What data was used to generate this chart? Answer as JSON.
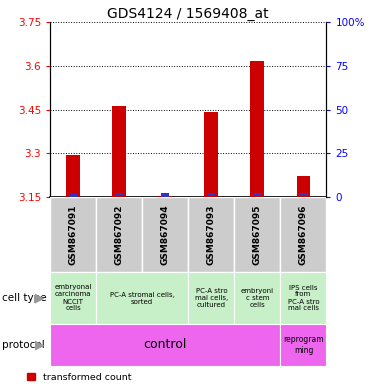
{
  "title": "GDS4124 / 1569408_at",
  "samples": [
    "GSM867091",
    "GSM867092",
    "GSM867094",
    "GSM867093",
    "GSM867095",
    "GSM867096"
  ],
  "transformed_counts": [
    3.293,
    3.463,
    3.155,
    3.44,
    3.615,
    3.222
  ],
  "blue_bar_heights": [
    0.009,
    0.01,
    0.013,
    0.012,
    0.012,
    0.01
  ],
  "blue_bar_offsets": [
    0.0,
    0.003,
    0.0,
    0.003,
    0.003,
    0.003
  ],
  "ylim": [
    3.15,
    3.75
  ],
  "y_ticks_left": [
    3.15,
    3.3,
    3.45,
    3.6,
    3.75
  ],
  "y_right_labels": [
    "0",
    "25",
    "50",
    "75",
    "100%"
  ],
  "bar_color": "#cc0000",
  "pct_color": "#3333cc",
  "cell_type_color": "#c8f0c8",
  "protocol_color": "#ee66ee",
  "sample_box_color": "#cccccc",
  "ct_data": [
    [
      0,
      1,
      "embryonal\ncarcinoma\nNCCIT\ncells"
    ],
    [
      1,
      3,
      "PC-A stromal cells,\nsorted"
    ],
    [
      3,
      4,
      "PC-A stro\nmal cells,\ncultured"
    ],
    [
      4,
      5,
      "embryoni\nc stem\ncells"
    ],
    [
      5,
      6,
      "IPS cells\nfrom\nPC-A stro\nmal cells"
    ]
  ]
}
